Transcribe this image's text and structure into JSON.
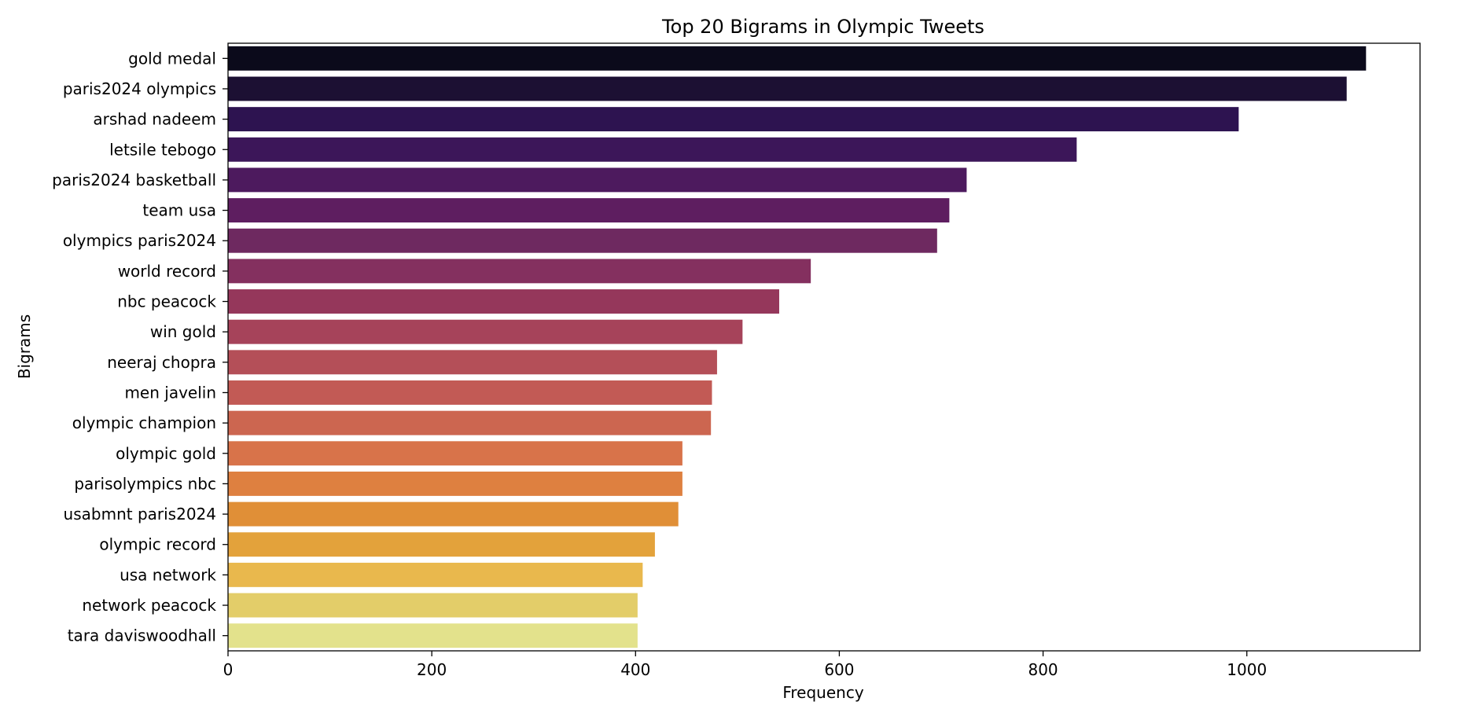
{
  "chart_data": {
    "type": "bar",
    "orientation": "horizontal",
    "title": "Top 20 Bigrams in Olympic Tweets",
    "xlabel": "Frequency",
    "ylabel": "Bigrams",
    "xlim": [
      0,
      1170
    ],
    "xticks": [
      0,
      200,
      400,
      600,
      800,
      1000
    ],
    "grid": false,
    "colormap": "inferno",
    "categories": [
      "gold medal",
      "paris2024 olympics",
      "arshad nadeem",
      "letsile tebogo",
      "paris2024 basketball",
      "team usa",
      "olympics paris2024",
      "world record",
      "nbc peacock",
      "win gold",
      "neeraj chopra",
      "men javelin",
      "olympic champion",
      "olympic gold",
      "parisolympics nbc",
      "usabmnt paris2024",
      "olympic record",
      "usa network",
      "network peacock",
      "tara daviswoodhall"
    ],
    "values": [
      1117,
      1098,
      992,
      833,
      725,
      708,
      696,
      572,
      541,
      505,
      480,
      475,
      474,
      446,
      446,
      442,
      419,
      407,
      402,
      402
    ],
    "colors": [
      "#0b0a1b",
      "#1c1033",
      "#2d1350",
      "#3c1659",
      "#4d1a5e",
      "#5e1e60",
      "#6e2960",
      "#84305f",
      "#95375b",
      "#a6435a",
      "#b44f58",
      "#c25a55",
      "#cc6650",
      "#d8734a",
      "#de8040",
      "#e08f37",
      "#e3a23b",
      "#e9b84d",
      "#e3cd69",
      "#e3e28c"
    ]
  }
}
